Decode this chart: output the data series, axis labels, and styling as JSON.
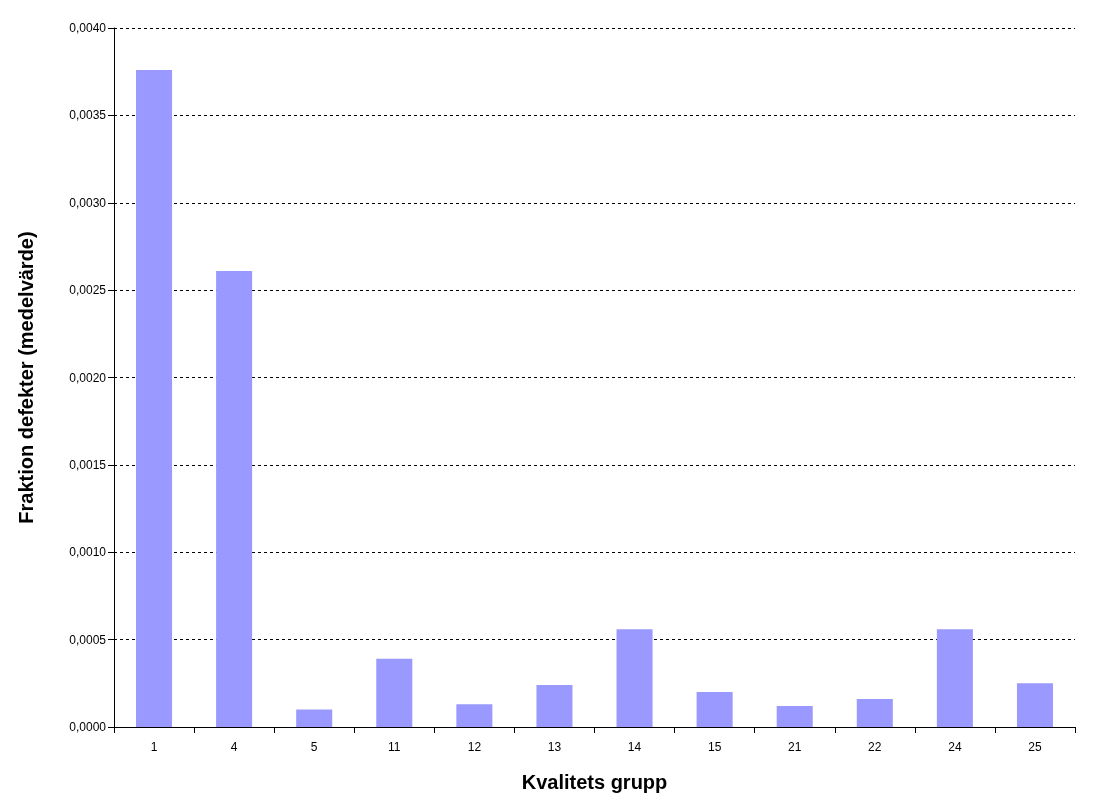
{
  "chart_data": {
    "type": "bar",
    "xlabel": "Kvalitets grupp",
    "ylabel": "Fraktion defekter (medelvärde)",
    "categories": [
      "1",
      "4",
      "5",
      "11",
      "12",
      "13",
      "14",
      "15",
      "21",
      "22",
      "24",
      "25"
    ],
    "values": [
      0.00376,
      0.00261,
      0.0001,
      0.00039,
      0.00013,
      0.00024,
      0.00056,
      0.0002,
      0.00012,
      0.00016,
      0.00056,
      0.00025
    ],
    "color": "#9999ff",
    "ylim": [
      0,
      0.004
    ],
    "yticks": [
      {
        "value": 0,
        "label": "0,0000"
      },
      {
        "value": 0.0005,
        "label": "0,0005"
      },
      {
        "value": 0.001,
        "label": "0,0010"
      },
      {
        "value": 0.0015,
        "label": "0,0015"
      },
      {
        "value": 0.002,
        "label": "0,0020"
      },
      {
        "value": 0.0025,
        "label": "0,0025"
      },
      {
        "value": 0.003,
        "label": "0,0030"
      },
      {
        "value": 0.0035,
        "label": "0,0035"
      },
      {
        "value": 0.004,
        "label": "0,0040"
      }
    ],
    "grid": "y"
  }
}
